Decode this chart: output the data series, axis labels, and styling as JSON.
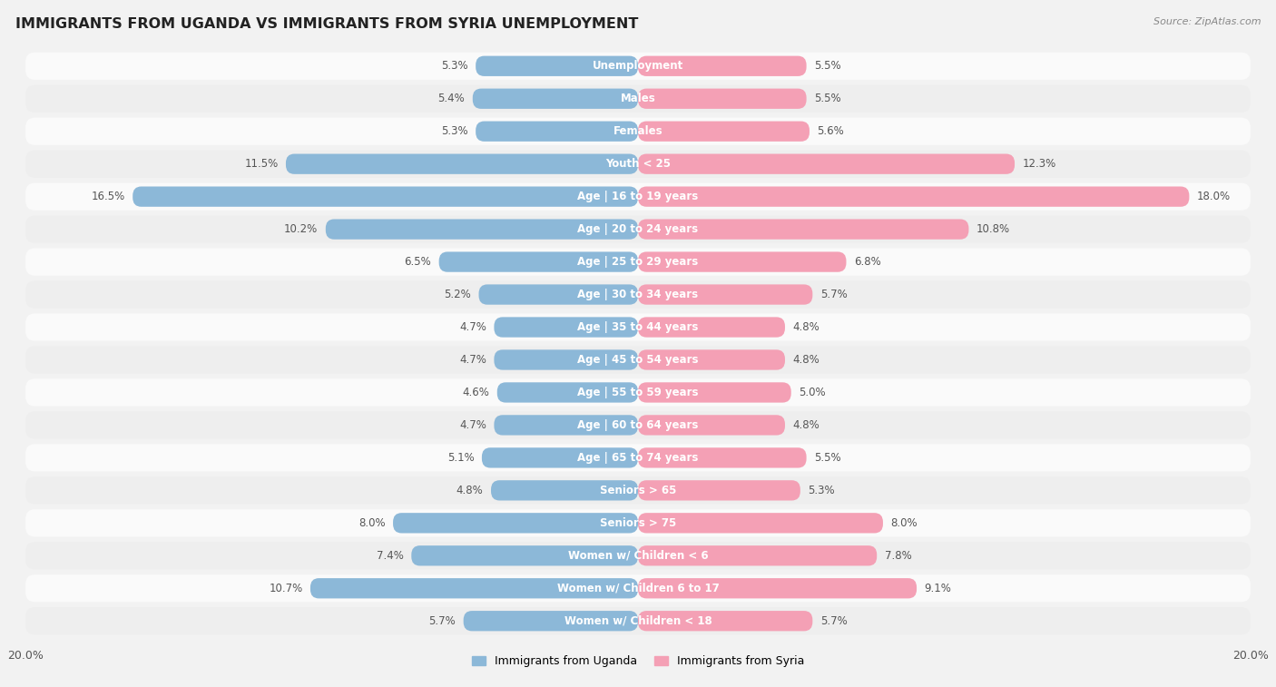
{
  "title": "IMMIGRANTS FROM UGANDA VS IMMIGRANTS FROM SYRIA UNEMPLOYMENT",
  "source": "Source: ZipAtlas.com",
  "categories": [
    "Unemployment",
    "Males",
    "Females",
    "Youth < 25",
    "Age | 16 to 19 years",
    "Age | 20 to 24 years",
    "Age | 25 to 29 years",
    "Age | 30 to 34 years",
    "Age | 35 to 44 years",
    "Age | 45 to 54 years",
    "Age | 55 to 59 years",
    "Age | 60 to 64 years",
    "Age | 65 to 74 years",
    "Seniors > 65",
    "Seniors > 75",
    "Women w/ Children < 6",
    "Women w/ Children 6 to 17",
    "Women w/ Children < 18"
  ],
  "uganda_values": [
    5.3,
    5.4,
    5.3,
    11.5,
    16.5,
    10.2,
    6.5,
    5.2,
    4.7,
    4.7,
    4.6,
    4.7,
    5.1,
    4.8,
    8.0,
    7.4,
    10.7,
    5.7
  ],
  "syria_values": [
    5.5,
    5.5,
    5.6,
    12.3,
    18.0,
    10.8,
    6.8,
    5.7,
    4.8,
    4.8,
    5.0,
    4.8,
    5.5,
    5.3,
    8.0,
    7.8,
    9.1,
    5.7
  ],
  "uganda_color": "#8cb8d8",
  "syria_color": "#f4a0b5",
  "background_color": "#f2f2f2",
  "row_color_light": "#fafafa",
  "row_color_dark": "#eeeeee",
  "max_value": 20.0,
  "legend_uganda": "Immigrants from Uganda",
  "legend_syria": "Immigrants from Syria",
  "value_label_color": "#555555",
  "category_label_color": "#444444",
  "title_color": "#222222",
  "source_color": "#888888"
}
